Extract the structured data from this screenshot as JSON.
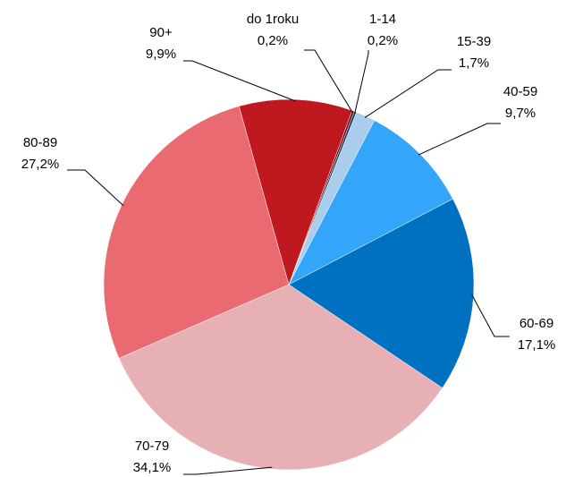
{
  "chart_data": {
    "type": "pie",
    "categories": [
      "do 1roku",
      "1-14",
      "15-39",
      "40-59",
      "60-69",
      "70-79",
      "80-89",
      "90+"
    ],
    "values": [
      0.2,
      0.2,
      1.7,
      9.7,
      17.1,
      34.1,
      27.2,
      9.9
    ],
    "value_labels": [
      "0,2%",
      "0,2%",
      "1,7%",
      "9,7%",
      "17,1%",
      "34,1%",
      "27,2%",
      "9,9%"
    ],
    "colors": [
      "#6e1014",
      "#1f3a68",
      "#a9cdea",
      "#33a6fb",
      "#0070c0",
      "#e7b0b4",
      "#e96a70",
      "#c0181f"
    ]
  }
}
